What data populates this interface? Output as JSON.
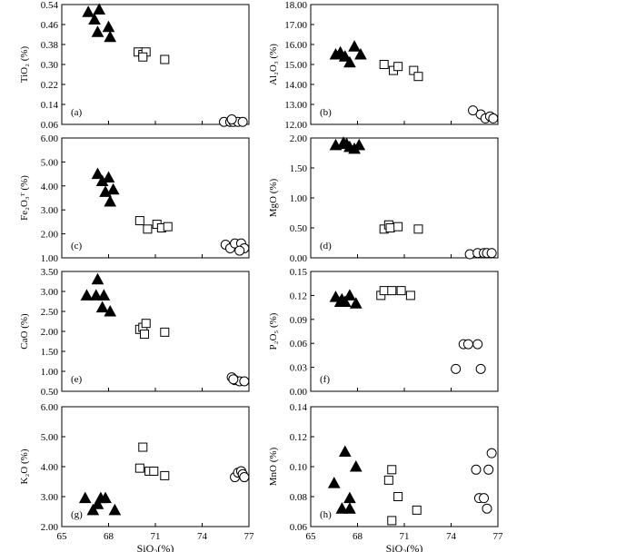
{
  "chart_data": [
    {
      "type": "scatter",
      "panel_label": "(a)",
      "ylabel": "TiO₂ (%)",
      "xlim": [
        65,
        77
      ],
      "ylim": [
        0.06,
        0.54
      ],
      "yticks": [
        "0.06",
        "0.14",
        "0.22",
        "0.30",
        "0.38",
        "0.46",
        "0.54"
      ],
      "xticks": [],
      "xlabel": "",
      "series": [
        {
          "marker": "triangle",
          "points": [
            [
              66.7,
              0.51
            ],
            [
              67.1,
              0.48
            ],
            [
              67.4,
              0.52
            ],
            [
              67.3,
              0.43
            ],
            [
              68.0,
              0.45
            ],
            [
              68.1,
              0.41
            ]
          ]
        },
        {
          "marker": "square",
          "points": [
            [
              69.9,
              0.35
            ],
            [
              70.2,
              0.34
            ],
            [
              70.4,
              0.35
            ],
            [
              70.2,
              0.33
            ],
            [
              71.6,
              0.32
            ]
          ]
        },
        {
          "marker": "circle",
          "points": [
            [
              75.4,
              0.07
            ],
            [
              75.8,
              0.07
            ],
            [
              76.0,
              0.07
            ],
            [
              76.3,
              0.07
            ],
            [
              76.6,
              0.07
            ],
            [
              75.9,
              0.08
            ]
          ]
        }
      ]
    },
    {
      "type": "scatter",
      "panel_label": "(b)",
      "ylabel": "Al₂O₃ (%)",
      "xlim": [
        65,
        77
      ],
      "ylim": [
        12.0,
        18.0
      ],
      "yticks": [
        "12.00",
        "13.00",
        "14.00",
        "15.00",
        "16.00",
        "17.00",
        "18.00"
      ],
      "xticks": [],
      "xlabel": "",
      "series": [
        {
          "marker": "triangle",
          "points": [
            [
              66.6,
              15.5
            ],
            [
              66.9,
              15.6
            ],
            [
              67.2,
              15.4
            ],
            [
              67.5,
              15.1
            ],
            [
              67.8,
              15.9
            ],
            [
              68.2,
              15.5
            ]
          ]
        },
        {
          "marker": "square",
          "points": [
            [
              69.7,
              15.0
            ],
            [
              70.3,
              14.7
            ],
            [
              70.6,
              14.9
            ],
            [
              71.6,
              14.7
            ],
            [
              71.9,
              14.4
            ]
          ]
        },
        {
          "marker": "circle",
          "points": [
            [
              75.4,
              12.7
            ],
            [
              75.9,
              12.5
            ],
            [
              76.2,
              12.3
            ],
            [
              76.5,
              12.4
            ],
            [
              76.7,
              12.3
            ]
          ]
        }
      ]
    },
    {
      "type": "scatter",
      "panel_label": "(c)",
      "ylabel": "Fe₂O₃ᵀ (%)",
      "xlim": [
        65,
        77
      ],
      "ylim": [
        1.0,
        6.0
      ],
      "yticks": [
        "1.00",
        "2.00",
        "3.00",
        "4.00",
        "5.00",
        "6.00"
      ],
      "xticks": [],
      "xlabel": "",
      "series": [
        {
          "marker": "triangle",
          "points": [
            [
              67.3,
              4.5
            ],
            [
              67.6,
              4.2
            ],
            [
              68.0,
              4.35
            ],
            [
              67.8,
              3.75
            ],
            [
              68.3,
              3.85
            ],
            [
              68.1,
              3.35
            ]
          ]
        },
        {
          "marker": "square",
          "points": [
            [
              70.0,
              2.55
            ],
            [
              70.5,
              2.2
            ],
            [
              71.1,
              2.4
            ],
            [
              71.4,
              2.25
            ],
            [
              71.8,
              2.3
            ]
          ]
        },
        {
          "marker": "circle",
          "points": [
            [
              75.5,
              1.55
            ],
            [
              75.8,
              1.4
            ],
            [
              76.1,
              1.6
            ],
            [
              76.5,
              1.6
            ],
            [
              76.7,
              1.4
            ],
            [
              76.4,
              1.3
            ]
          ]
        }
      ]
    },
    {
      "type": "scatter",
      "panel_label": "(d)",
      "ylabel": "MgO (%)",
      "xlim": [
        65,
        77
      ],
      "ylim": [
        0.0,
        2.0
      ],
      "yticks": [
        "0.00",
        "0.50",
        "1.00",
        "1.50",
        "2.00"
      ],
      "xticks": [],
      "xlabel": "",
      "series": [
        {
          "marker": "triangle",
          "points": [
            [
              66.6,
              1.88
            ],
            [
              67.1,
              1.92
            ],
            [
              67.5,
              1.85
            ],
            [
              67.8,
              1.82
            ],
            [
              68.1,
              1.88
            ],
            [
              67.3,
              1.9
            ]
          ]
        },
        {
          "marker": "square",
          "points": [
            [
              69.7,
              0.48
            ],
            [
              70.0,
              0.55
            ],
            [
              70.1,
              0.5
            ],
            [
              70.6,
              0.52
            ],
            [
              71.9,
              0.48
            ]
          ]
        },
        {
          "marker": "circle",
          "points": [
            [
              75.2,
              0.06
            ],
            [
              75.7,
              0.08
            ],
            [
              76.1,
              0.08
            ],
            [
              76.3,
              0.08
            ],
            [
              76.6,
              0.08
            ]
          ]
        }
      ]
    },
    {
      "type": "scatter",
      "panel_label": "(e)",
      "ylabel": "CaO (%)",
      "xlim": [
        65,
        77
      ],
      "ylim": [
        0.5,
        3.5
      ],
      "yticks": [
        "0.50",
        "1.00",
        "1.50",
        "2.00",
        "2.50",
        "3.00",
        "3.50"
      ],
      "xticks": [],
      "xlabel": "",
      "series": [
        {
          "marker": "triangle",
          "points": [
            [
              66.6,
              2.9
            ],
            [
              67.2,
              2.9
            ],
            [
              67.3,
              3.3
            ],
            [
              67.7,
              2.9
            ],
            [
              67.6,
              2.6
            ],
            [
              68.1,
              2.5
            ]
          ]
        },
        {
          "marker": "square",
          "points": [
            [
              70.0,
              2.05
            ],
            [
              70.2,
              2.1
            ],
            [
              70.4,
              2.2
            ],
            [
              70.3,
              1.93
            ],
            [
              71.6,
              1.98
            ]
          ]
        },
        {
          "marker": "circle",
          "points": [
            [
              75.9,
              0.85
            ],
            [
              76.1,
              0.78
            ],
            [
              76.4,
              0.75
            ],
            [
              76.7,
              0.75
            ],
            [
              76.0,
              0.8
            ]
          ]
        }
      ]
    },
    {
      "type": "scatter",
      "panel_label": "(f)",
      "ylabel": "P₂O₅ (%)",
      "xlim": [
        65,
        77
      ],
      "ylim": [
        0.0,
        0.15
      ],
      "yticks": [
        "0.00",
        "0.03",
        "0.06",
        "0.09",
        "0.12",
        "0.15"
      ],
      "xticks": [],
      "xlabel": "",
      "series": [
        {
          "marker": "triangle",
          "points": [
            [
              66.6,
              0.118
            ],
            [
              66.9,
              0.112
            ],
            [
              67.2,
              0.112
            ],
            [
              67.5,
              0.12
            ],
            [
              67.9,
              0.11
            ],
            [
              67.0,
              0.115
            ]
          ]
        },
        {
          "marker": "square",
          "points": [
            [
              69.5,
              0.12
            ],
            [
              69.7,
              0.126
            ],
            [
              70.2,
              0.126
            ],
            [
              70.8,
              0.126
            ],
            [
              71.4,
              0.12
            ]
          ]
        },
        {
          "marker": "circle",
          "points": [
            [
              74.3,
              0.028
            ],
            [
              74.8,
              0.059
            ],
            [
              75.1,
              0.059
            ],
            [
              75.7,
              0.059
            ],
            [
              75.9,
              0.028
            ]
          ]
        }
      ]
    },
    {
      "type": "scatter",
      "panel_label": "(g)",
      "ylabel": "K₂O (%)",
      "xlim": [
        65,
        77
      ],
      "ylim": [
        2.0,
        6.0
      ],
      "xticks": [
        "65",
        "68",
        "71",
        "74",
        "77"
      ],
      "xlabel": "SiO₂(%)",
      "yticks": [
        "2.00",
        "3.00",
        "4.00",
        "5.00",
        "6.00"
      ],
      "series": [
        {
          "marker": "triangle",
          "points": [
            [
              66.5,
              2.95
            ],
            [
              67.0,
              2.55
            ],
            [
              67.3,
              2.75
            ],
            [
              67.5,
              2.95
            ],
            [
              67.8,
              2.95
            ],
            [
              68.4,
              2.55
            ]
          ]
        },
        {
          "marker": "square",
          "points": [
            [
              70.0,
              3.95
            ],
            [
              70.2,
              4.65
            ],
            [
              70.6,
              3.85
            ],
            [
              70.9,
              3.85
            ],
            [
              71.6,
              3.7
            ]
          ]
        },
        {
          "marker": "circle",
          "points": [
            [
              76.1,
              3.65
            ],
            [
              76.3,
              3.8
            ],
            [
              76.5,
              3.85
            ],
            [
              76.6,
              3.75
            ],
            [
              76.7,
              3.65
            ]
          ]
        }
      ]
    },
    {
      "type": "scatter",
      "panel_label": "(h)",
      "ylabel": "MnO (%)",
      "xlim": [
        65,
        77
      ],
      "ylim": [
        0.06,
        0.14
      ],
      "xticks": [
        "65",
        "68",
        "71",
        "74",
        "77"
      ],
      "xlabel": "SiO₂(%)",
      "yticks": [
        "0.06",
        "0.08",
        "0.10",
        "0.12",
        "0.14"
      ],
      "series": [
        {
          "marker": "triangle",
          "points": [
            [
              66.5,
              0.089
            ],
            [
              67.0,
              0.072
            ],
            [
              67.2,
              0.11
            ],
            [
              67.5,
              0.079
            ],
            [
              67.5,
              0.072
            ],
            [
              67.9,
              0.1
            ]
          ]
        },
        {
          "marker": "square",
          "points": [
            [
              70.0,
              0.091
            ],
            [
              70.2,
              0.098
            ],
            [
              70.2,
              0.064
            ],
            [
              70.6,
              0.08
            ],
            [
              71.8,
              0.071
            ]
          ]
        },
        {
          "marker": "circle",
          "points": [
            [
              75.6,
              0.098
            ],
            [
              75.8,
              0.079
            ],
            [
              76.1,
              0.079
            ],
            [
              76.3,
              0.072
            ],
            [
              76.4,
              0.098
            ],
            [
              76.6,
              0.109
            ]
          ]
        }
      ]
    }
  ]
}
